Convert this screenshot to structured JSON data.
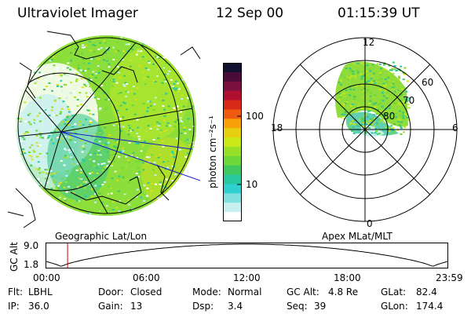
{
  "header": {
    "instrument": "Ultraviolet Imager",
    "date": "12 Sep 00",
    "time": "01:15:39 UT"
  },
  "geo_map": {
    "label": "Geographic Lat/Lon"
  },
  "polar_map": {
    "label": "Apex MLat/MLT",
    "mlt_labels": {
      "top": "12",
      "left": "18",
      "right": "6",
      "bottom": "0"
    },
    "lat_labels": [
      "60",
      "70",
      "80"
    ]
  },
  "colorbar": {
    "unit_label": "photon cm⁻²s⁻¹",
    "tick_100": "100",
    "tick_10": "10",
    "colors": [
      "#101030",
      "#4a0a3a",
      "#7a1040",
      "#b01030",
      "#d82818",
      "#ee5a10",
      "#f8a008",
      "#e8d010",
      "#c8e818",
      "#98e028",
      "#6ed83a",
      "#40c860",
      "#28c8a0",
      "#30d0d0",
      "#80e0e0",
      "#c8f0f0",
      "#ffffff"
    ]
  },
  "altitude_plot": {
    "ylabel": "GC Alt",
    "yticks": [
      "9.0",
      "1.8"
    ],
    "xticks": [
      "00:00",
      "06:00",
      "12:00",
      "18:00",
      "23:59"
    ],
    "current_time_fraction": 0.053
  },
  "info": {
    "flt_label": "Flt:",
    "flt_value": "LBHL",
    "door_label": "Door:",
    "door_value": "Closed",
    "mode_label": "Mode:",
    "mode_value": "Normal",
    "gcalt_label": "GC Alt:",
    "gcalt_value": "4.8 Re",
    "glat_label": "GLat:",
    "glat_value": "82.4",
    "ip_label": "IP:",
    "ip_value": "36.0",
    "gain_label": "Gain:",
    "gain_value": "13",
    "dsp_label": "Dsp:",
    "dsp_value": "3.4",
    "seq_label": "Seq:",
    "seq_value": "39",
    "glon_label": "GLon:",
    "glon_value": "174.4"
  }
}
